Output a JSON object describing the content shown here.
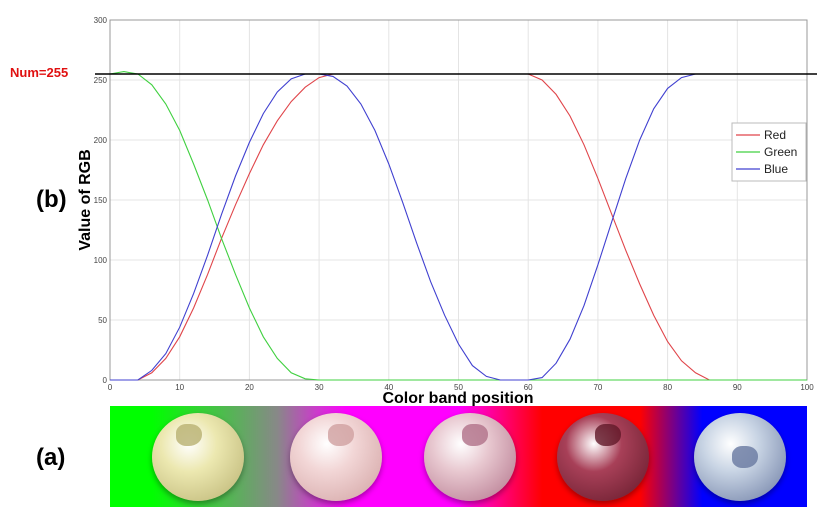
{
  "panel_b_label": "(b)",
  "panel_a_label": "(a)",
  "chart_data": {
    "type": "line",
    "xlabel": "Color band position",
    "ylabel": "Value of RGB",
    "xlim": [
      0,
      100
    ],
    "ylim": [
      0,
      300
    ],
    "xticks": [
      0,
      10,
      20,
      30,
      40,
      50,
      60,
      70,
      80,
      90,
      100
    ],
    "yticks": [
      0,
      50,
      100,
      150,
      200,
      250,
      300
    ],
    "grid": true,
    "legend_position": "top-right",
    "reference_line": {
      "y": 255,
      "label": "Num=255",
      "color": "#e01010"
    },
    "x": [
      0,
      2,
      4,
      6,
      8,
      10,
      12,
      14,
      16,
      18,
      20,
      22,
      24,
      26,
      28,
      30,
      32,
      34,
      36,
      38,
      40,
      42,
      44,
      46,
      48,
      50,
      52,
      54,
      56,
      58,
      60,
      62,
      64,
      66,
      68,
      70,
      72,
      74,
      76,
      78,
      80,
      82,
      84,
      86,
      88,
      90,
      92,
      94,
      96,
      98,
      100
    ],
    "series": [
      {
        "name": "Red",
        "color": "#e0454a",
        "values": [
          0,
          0,
          0,
          6,
          18,
          36,
          60,
          88,
          118,
          146,
          172,
          196,
          216,
          232,
          244,
          252,
          255,
          255,
          255,
          255,
          255,
          255,
          255,
          255,
          255,
          255,
          255,
          255,
          255,
          255,
          255,
          250,
          238,
          220,
          196,
          168,
          138,
          108,
          80,
          54,
          32,
          16,
          6,
          0,
          0,
          0,
          0,
          0,
          0,
          0,
          0
        ]
      },
      {
        "name": "Green",
        "color": "#40d040",
        "values": [
          255,
          257,
          255,
          246,
          230,
          208,
          180,
          150,
          118,
          88,
          60,
          36,
          18,
          6,
          1,
          0,
          0,
          0,
          0,
          0,
          0,
          0,
          0,
          0,
          0,
          0,
          0,
          0,
          0,
          0,
          0,
          0,
          0,
          0,
          0,
          0,
          0,
          0,
          0,
          0,
          0,
          0,
          0,
          0,
          0,
          0,
          0,
          0,
          0,
          0,
          0
        ]
      },
      {
        "name": "Blue",
        "color": "#4040d0",
        "values": [
          0,
          0,
          0,
          8,
          22,
          44,
          72,
          104,
          138,
          170,
          198,
          222,
          240,
          251,
          255,
          255,
          253,
          245,
          230,
          208,
          180,
          148,
          114,
          82,
          54,
          30,
          12,
          3,
          0,
          0,
          0,
          2,
          14,
          34,
          62,
          96,
          132,
          168,
          200,
          226,
          243,
          252,
          255,
          255,
          255,
          255,
          255,
          255,
          255,
          255,
          255
        ]
      }
    ]
  },
  "color_band": {
    "gradient_stops": [
      "#00ff00",
      "#00ff00",
      "#888888",
      "#ff00ff",
      "#ff00ff",
      "#ff0000",
      "#ff0000",
      "#0000ff",
      "#0000ff"
    ],
    "berries": [
      {
        "name": "green-stage",
        "body": "#ece8b0",
        "shade": "#b8b070"
      },
      {
        "name": "pink-stage",
        "body": "#f2d6d6",
        "shade": "#d0a0a0"
      },
      {
        "name": "red-stage",
        "body": "#e8c8d0",
        "shade": "#b07088"
      },
      {
        "name": "purple-stage",
        "body": "#a84058",
        "shade": "#601828"
      },
      {
        "name": "blue-stage",
        "body": "#c8d4e4",
        "shade": "#6878a0"
      }
    ]
  }
}
